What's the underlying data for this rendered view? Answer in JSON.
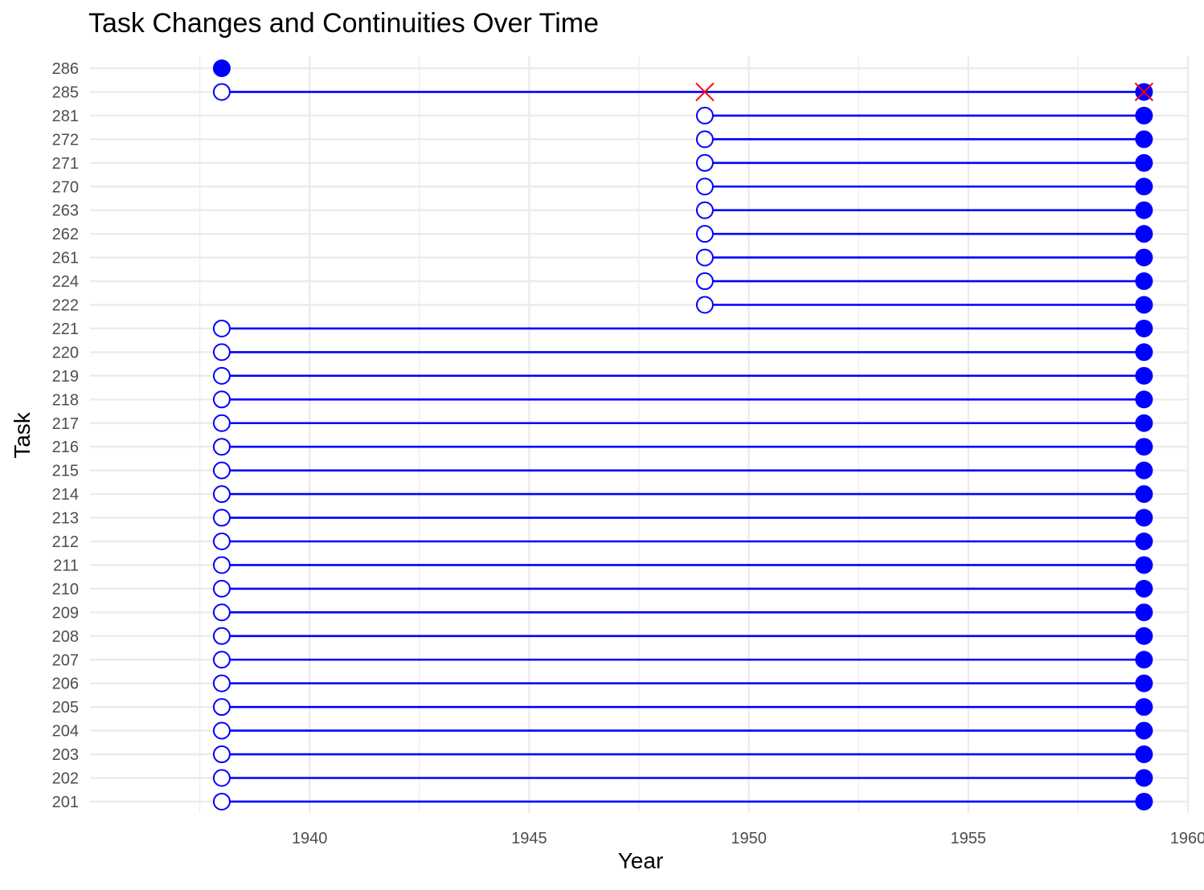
{
  "chart_data": {
    "type": "dumbbell",
    "title": "Task Changes and Continuities Over Time",
    "xlabel": "Year",
    "ylabel": "Task",
    "xlim": [
      1935.0,
      1960.0
    ],
    "x_ticks": [
      1940,
      1945,
      1950,
      1955,
      1960
    ],
    "x_tick_labels": [
      "1940",
      "1945",
      "1950",
      "1955",
      "1960"
    ],
    "grid": true,
    "colors": {
      "segment": "#0000ff",
      "marker": "#0000ff",
      "removed": "#ff0000",
      "grid": "#ebebeb",
      "axis_text": "#4d4d4d"
    },
    "tasks": [
      "201",
      "202",
      "203",
      "204",
      "205",
      "206",
      "207",
      "208",
      "209",
      "210",
      "211",
      "212",
      "213",
      "214",
      "215",
      "216",
      "217",
      "218",
      "219",
      "220",
      "221",
      "222",
      "224",
      "261",
      "262",
      "263",
      "270",
      "271",
      "272",
      "281",
      "285",
      "286"
    ],
    "segments": [
      {
        "task": "201",
        "start": 1938,
        "end": 1959
      },
      {
        "task": "202",
        "start": 1938,
        "end": 1959
      },
      {
        "task": "203",
        "start": 1938,
        "end": 1959
      },
      {
        "task": "204",
        "start": 1938,
        "end": 1959
      },
      {
        "task": "205",
        "start": 1938,
        "end": 1959
      },
      {
        "task": "206",
        "start": 1938,
        "end": 1959
      },
      {
        "task": "207",
        "start": 1938,
        "end": 1959
      },
      {
        "task": "208",
        "start": 1938,
        "end": 1959
      },
      {
        "task": "209",
        "start": 1938,
        "end": 1959
      },
      {
        "task": "210",
        "start": 1938,
        "end": 1959
      },
      {
        "task": "211",
        "start": 1938,
        "end": 1959
      },
      {
        "task": "212",
        "start": 1938,
        "end": 1959
      },
      {
        "task": "213",
        "start": 1938,
        "end": 1959
      },
      {
        "task": "214",
        "start": 1938,
        "end": 1959
      },
      {
        "task": "215",
        "start": 1938,
        "end": 1959
      },
      {
        "task": "216",
        "start": 1938,
        "end": 1959
      },
      {
        "task": "217",
        "start": 1938,
        "end": 1959
      },
      {
        "task": "218",
        "start": 1938,
        "end": 1959
      },
      {
        "task": "219",
        "start": 1938,
        "end": 1959
      },
      {
        "task": "220",
        "start": 1938,
        "end": 1959
      },
      {
        "task": "221",
        "start": 1938,
        "end": 1959
      },
      {
        "task": "222",
        "start": 1949,
        "end": 1959
      },
      {
        "task": "224",
        "start": 1949,
        "end": 1959
      },
      {
        "task": "261",
        "start": 1949,
        "end": 1959
      },
      {
        "task": "262",
        "start": 1949,
        "end": 1959
      },
      {
        "task": "263",
        "start": 1949,
        "end": 1959
      },
      {
        "task": "270",
        "start": 1949,
        "end": 1959
      },
      {
        "task": "271",
        "start": 1949,
        "end": 1959
      },
      {
        "task": "272",
        "start": 1949,
        "end": 1959
      },
      {
        "task": "281",
        "start": 1949,
        "end": 1959
      },
      {
        "task": "285",
        "start": 1938,
        "end": 1959
      }
    ],
    "start_points": [
      {
        "task": "201",
        "x": 1938
      },
      {
        "task": "202",
        "x": 1938
      },
      {
        "task": "203",
        "x": 1938
      },
      {
        "task": "204",
        "x": 1938
      },
      {
        "task": "205",
        "x": 1938
      },
      {
        "task": "206",
        "x": 1938
      },
      {
        "task": "207",
        "x": 1938
      },
      {
        "task": "208",
        "x": 1938
      },
      {
        "task": "209",
        "x": 1938
      },
      {
        "task": "210",
        "x": 1938
      },
      {
        "task": "211",
        "x": 1938
      },
      {
        "task": "212",
        "x": 1938
      },
      {
        "task": "213",
        "x": 1938
      },
      {
        "task": "214",
        "x": 1938
      },
      {
        "task": "215",
        "x": 1938
      },
      {
        "task": "216",
        "x": 1938
      },
      {
        "task": "217",
        "x": 1938
      },
      {
        "task": "218",
        "x": 1938
      },
      {
        "task": "219",
        "x": 1938
      },
      {
        "task": "220",
        "x": 1938
      },
      {
        "task": "221",
        "x": 1938
      },
      {
        "task": "222",
        "x": 1949
      },
      {
        "task": "224",
        "x": 1949
      },
      {
        "task": "261",
        "x": 1949
      },
      {
        "task": "262",
        "x": 1949
      },
      {
        "task": "263",
        "x": 1949
      },
      {
        "task": "270",
        "x": 1949
      },
      {
        "task": "271",
        "x": 1949
      },
      {
        "task": "272",
        "x": 1949
      },
      {
        "task": "281",
        "x": 1949
      },
      {
        "task": "285",
        "x": 1938
      }
    ],
    "end_points": [
      {
        "task": "201",
        "x": 1959
      },
      {
        "task": "202",
        "x": 1959
      },
      {
        "task": "203",
        "x": 1959
      },
      {
        "task": "204",
        "x": 1959
      },
      {
        "task": "205",
        "x": 1959
      },
      {
        "task": "206",
        "x": 1959
      },
      {
        "task": "207",
        "x": 1959
      },
      {
        "task": "208",
        "x": 1959
      },
      {
        "task": "209",
        "x": 1959
      },
      {
        "task": "210",
        "x": 1959
      },
      {
        "task": "211",
        "x": 1959
      },
      {
        "task": "212",
        "x": 1959
      },
      {
        "task": "213",
        "x": 1959
      },
      {
        "task": "214",
        "x": 1959
      },
      {
        "task": "215",
        "x": 1959
      },
      {
        "task": "216",
        "x": 1959
      },
      {
        "task": "217",
        "x": 1959
      },
      {
        "task": "218",
        "x": 1959
      },
      {
        "task": "219",
        "x": 1959
      },
      {
        "task": "220",
        "x": 1959
      },
      {
        "task": "221",
        "x": 1959
      },
      {
        "task": "222",
        "x": 1959
      },
      {
        "task": "224",
        "x": 1959
      },
      {
        "task": "261",
        "x": 1959
      },
      {
        "task": "262",
        "x": 1959
      },
      {
        "task": "263",
        "x": 1959
      },
      {
        "task": "270",
        "x": 1959
      },
      {
        "task": "271",
        "x": 1959
      },
      {
        "task": "272",
        "x": 1959
      },
      {
        "task": "281",
        "x": 1959
      },
      {
        "task": "285",
        "x": 1959
      },
      {
        "task": "286",
        "x": 1938
      }
    ],
    "removed_points": [
      {
        "task": "285",
        "x": 1949
      },
      {
        "task": "285",
        "x": 1959
      }
    ]
  }
}
